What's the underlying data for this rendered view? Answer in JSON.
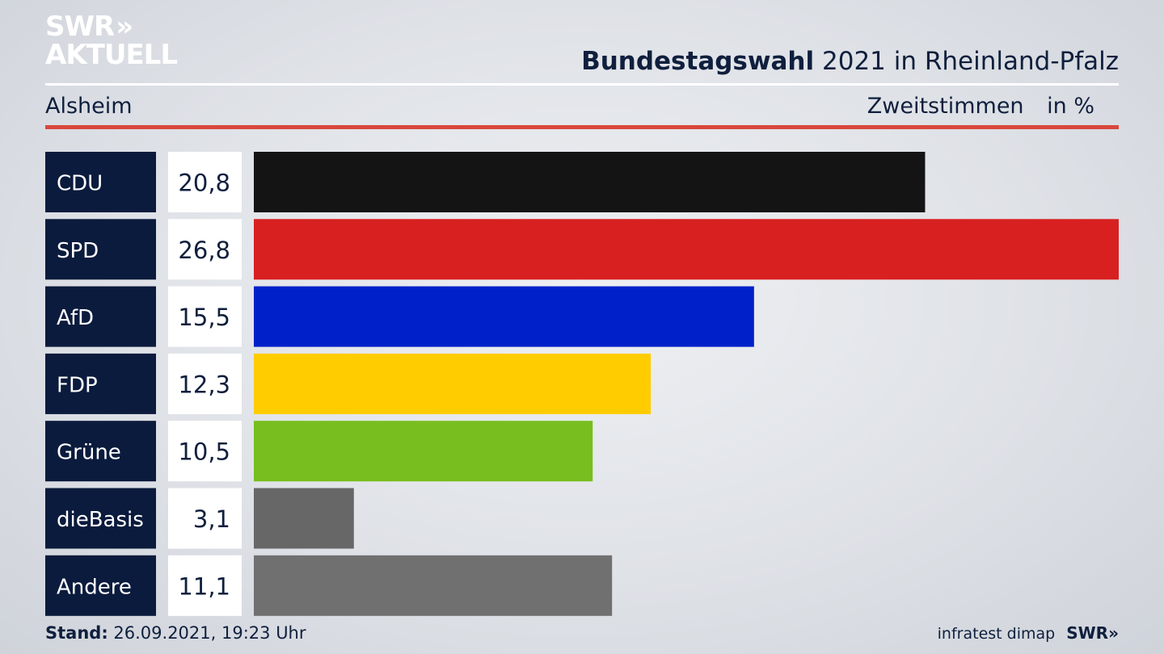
{
  "header": {
    "logo_line1": "SWR",
    "logo_arrows": "»",
    "logo_line2": "AKTUELL",
    "title_bold": "Bundestagswahl",
    "title_rest": "2021 in Rheinland-Pfalz",
    "region": "Alsheim",
    "vote_type": "Zweitstimmen",
    "unit": "in %"
  },
  "chart_data": {
    "type": "bar",
    "orientation": "horizontal",
    "categories": [
      "CDU",
      "SPD",
      "AfD",
      "FDP",
      "Grüne",
      "dieBasis",
      "Andere"
    ],
    "values": [
      20.8,
      26.8,
      15.5,
      12.3,
      10.5,
      3.1,
      11.1
    ],
    "value_labels": [
      "20,8",
      "26,8",
      "15,5",
      "12,3",
      "10,5",
      "3,1",
      "11,1"
    ],
    "colors": [
      "#141414",
      "#d82020",
      "#0021c9",
      "#ffcc00",
      "#78be1e",
      "#676767",
      "#707070"
    ],
    "label_bg": "#0b1b3d",
    "value_bg": "#ffffff"
  },
  "footer": {
    "stand_label": "Stand:",
    "stand_value": "26.09.2021, 19:23 Uhr",
    "source": "infratest dimap",
    "brand": "SWR",
    "brand_arrows": "»"
  }
}
